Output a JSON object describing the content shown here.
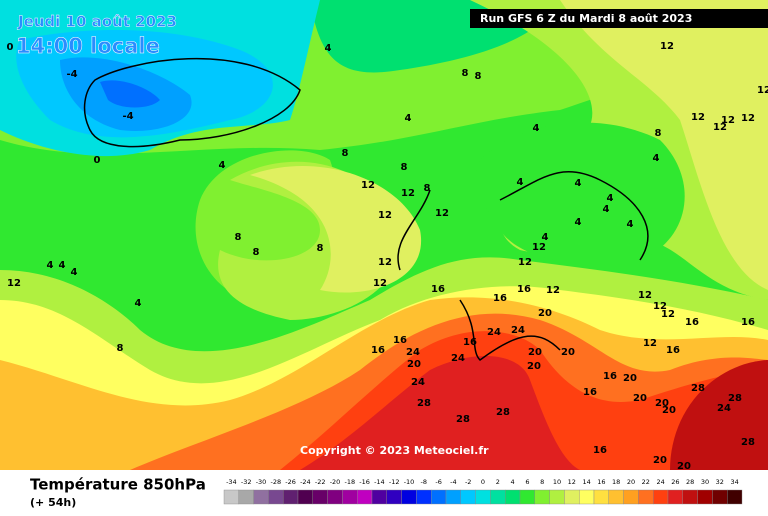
{
  "header": {
    "date": "Jeudi 10 août 2023",
    "time": "14:00 locale",
    "run": "Run GFS 6 Z du Mardi 8 août 2023"
  },
  "copyright": "Copyright © 2023 Meteociel.fr",
  "legend": {
    "title": "Température 850hPa",
    "subtitle": "(+ 54h)",
    "scale": [
      -34,
      -32,
      -30,
      -28,
      -26,
      -24,
      -22,
      -20,
      -18,
      -16,
      -14,
      -12,
      -10,
      -8,
      -6,
      -4,
      -2,
      0,
      2,
      4,
      6,
      8,
      10,
      12,
      14,
      16,
      18,
      20,
      22,
      24,
      26,
      28,
      30,
      32,
      34
    ],
    "colors": [
      "#c8c8c8",
      "#a8a8a8",
      "#9070a0",
      "#784890",
      "#602070",
      "#500050",
      "#680068",
      "#800080",
      "#a000a0",
      "#c000c0",
      "#5000a0",
      "#3000c0",
      "#0000e0",
      "#0030ff",
      "#0070ff",
      "#00a0ff",
      "#00c8ff",
      "#00e0e0",
      "#00e0a0",
      "#00e070",
      "#30e830",
      "#80f030",
      "#b0f040",
      "#e0f060",
      "#ffff60",
      "#ffe040",
      "#ffc030",
      "#ffa020",
      "#ff7020",
      "#ff4010",
      "#e02020",
      "#c01010",
      "#a00000",
      "#700000",
      "#400000"
    ]
  },
  "contour_labels": [
    0,
    4,
    -4,
    -4,
    8,
    8,
    4,
    4,
    8,
    4,
    0,
    8,
    12,
    12,
    8,
    12,
    12,
    8,
    8,
    8,
    12,
    12,
    4,
    4,
    4,
    12,
    4,
    8,
    16,
    16,
    16,
    16,
    20,
    24,
    24,
    16,
    24,
    24,
    16,
    20,
    24,
    28,
    28,
    28,
    20,
    20,
    20,
    16,
    16,
    16,
    20,
    20,
    20,
    20,
    28,
    24,
    28,
    28,
    20,
    20,
    12,
    12,
    12,
    16,
    16,
    16,
    12,
    12,
    12,
    12,
    12,
    12,
    12,
    8,
    4,
    4,
    4,
    4,
    4,
    4,
    4,
    4,
    12,
    12,
    12
  ]
}
